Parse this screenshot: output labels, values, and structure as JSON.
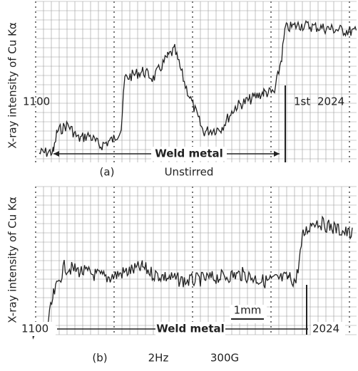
{
  "panels": [
    {
      "ylabel": "X-ray intensity of Cu Kα",
      "left": "1100",
      "right": "2024",
      "marker": "1st",
      "region": "Weld metal",
      "label": "(a)",
      "conditions": [
        "Unstirred"
      ]
    },
    {
      "ylabel": "X-ray intensity of Cu Kα",
      "left": "1100",
      "right": "2024",
      "region": "Weld metal",
      "scale_bar": "1mm",
      "label": "(b)",
      "conditions": [
        "2Hz",
        "300G"
      ]
    }
  ]
}
